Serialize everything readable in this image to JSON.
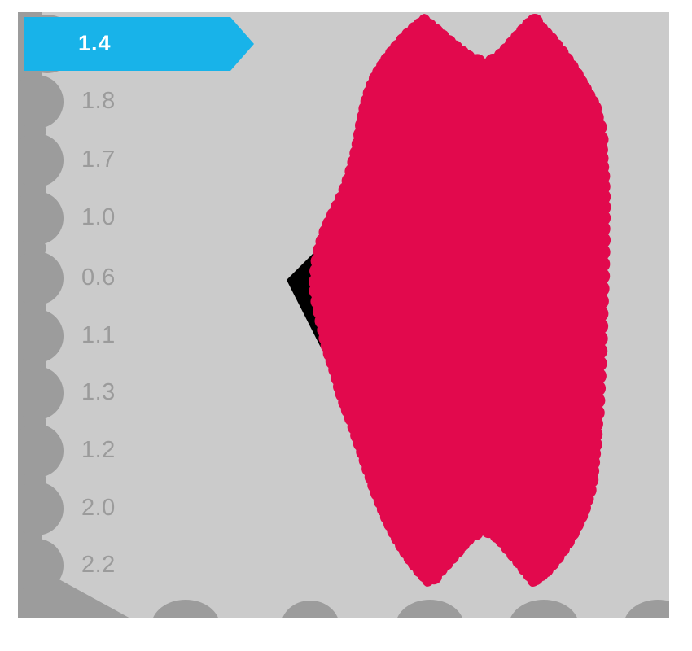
{
  "highlight": {
    "value": "1.4"
  },
  "rows": [
    {
      "value": "1.8"
    },
    {
      "value": "1.7"
    },
    {
      "value": "1.0"
    },
    {
      "value": "0.6"
    },
    {
      "value": "1.1"
    },
    {
      "value": "1.3"
    },
    {
      "value": "1.2"
    },
    {
      "value": "2.0"
    },
    {
      "value": "2.2"
    }
  ],
  "colors": {
    "canvas_gray": "#cbcbcb",
    "blob_gray": "#9c9c9c",
    "label_gray": "#9b9b9b",
    "cluster_red": "#e2094d",
    "highlight_cyan": "#18b3e9",
    "marker_black": "#000000",
    "value_white": "#ffffff"
  },
  "chart_data": {
    "type": "scatter",
    "title": "",
    "xlabel": "",
    "ylabel": "",
    "grid": false,
    "legend_position": "none",
    "row_labels": [
      "1.4",
      "1.8",
      "1.7",
      "1.0",
      "0.6",
      "1.1",
      "1.3",
      "1.2",
      "2.0",
      "2.2"
    ],
    "highlighted_row": "1.4",
    "annotations": [
      "highlight-arrow-banner on first row value 1.4",
      "black left-pointing marker beside red cluster at row 0.6 level",
      "large two-lobed red cluster blob occupying right half of plot",
      "gray blob markers along left edge aligned to each row",
      "gray blob bumps along bottom edge"
    ]
  }
}
